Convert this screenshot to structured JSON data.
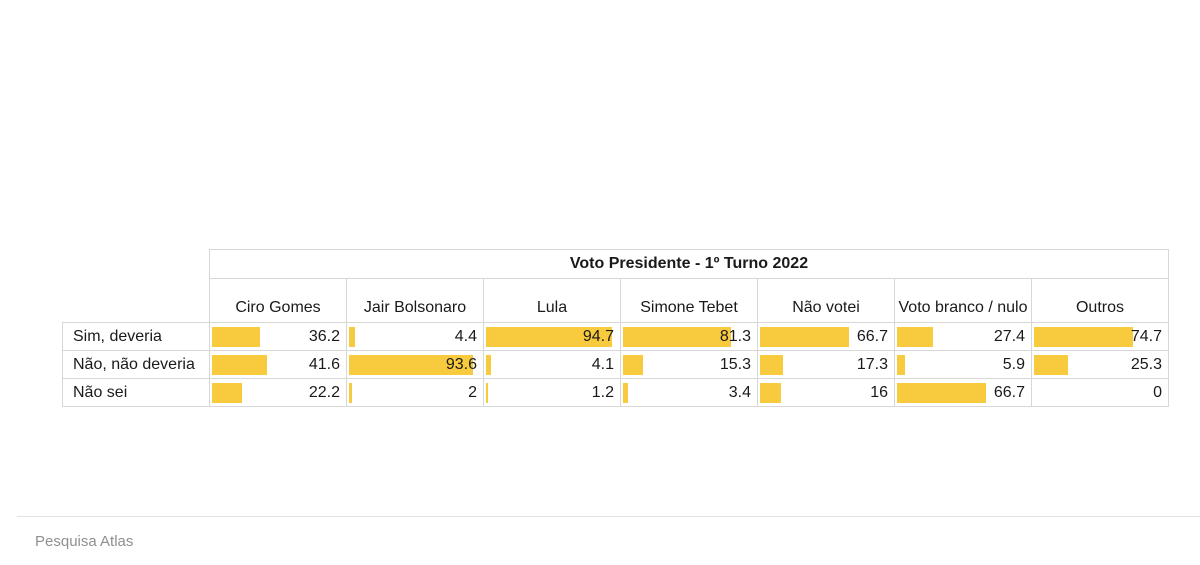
{
  "chart_data": {
    "type": "table",
    "title": "Voto Presidente - 1º Turno 2022",
    "columns": [
      "Ciro Gomes",
      "Jair Bolsonaro",
      "Lula",
      "Simone Tebet",
      "Não votei",
      "Voto branco / nulo",
      "Outros"
    ],
    "rows": [
      {
        "label": "Sim, deveria",
        "values": [
          36.2,
          4.4,
          94.7,
          81.3,
          66.7,
          27.4,
          74.7
        ]
      },
      {
        "label": "Não, não deveria",
        "values": [
          41.6,
          93.6,
          4.1,
          15.3,
          17.3,
          5.9,
          25.3
        ]
      },
      {
        "label": "Não sei",
        "values": [
          22.2,
          2,
          1.2,
          3.4,
          16,
          66.7,
          0
        ]
      }
    ],
    "bar_max": 100,
    "bar_color": "#f7cb3d"
  },
  "footer": {
    "source": "Pesquisa Atlas"
  }
}
